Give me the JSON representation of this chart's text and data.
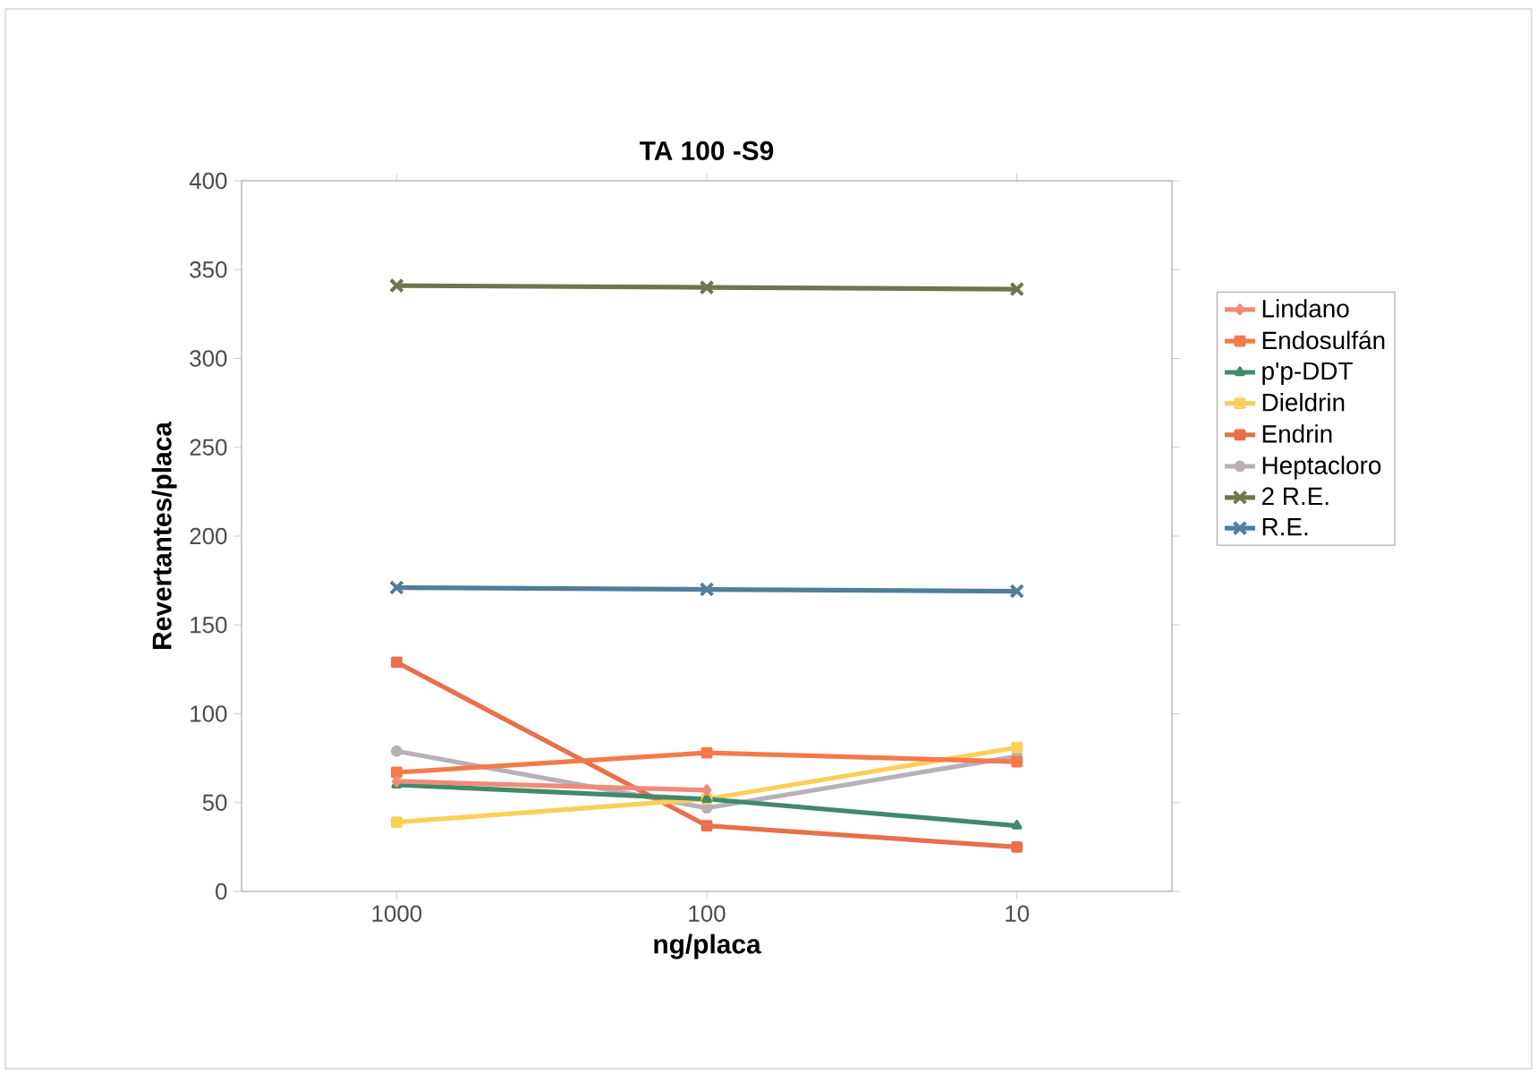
{
  "chart_data": {
    "type": "line",
    "title": "TA 100 -S9",
    "xlabel": "ng/placa",
    "ylabel": "Revertantes/placa",
    "categories": [
      "1000",
      "100",
      "10"
    ],
    "ylim": [
      0,
      400
    ],
    "yticks": [
      0,
      50,
      100,
      150,
      200,
      250,
      300,
      350,
      400
    ],
    "grid": false,
    "legend": "right",
    "series": [
      {
        "name": "Lindano",
        "color": "#f08a7a",
        "marker": "diamond",
        "values": [
          62,
          57,
          null
        ]
      },
      {
        "name": "Endosulfán",
        "color": "#f47a4a",
        "marker": "square",
        "values": [
          67,
          78,
          73
        ]
      },
      {
        "name": "p'p-DDT",
        "color": "#3f8a6a",
        "marker": "triangle",
        "values": [
          60,
          52,
          37
        ]
      },
      {
        "name": "Dieldrin",
        "color": "#fbcf5a",
        "marker": "square",
        "values": [
          39,
          52,
          81
        ]
      },
      {
        "name": "Endrin",
        "color": "#e8704a",
        "marker": "square",
        "values": [
          129,
          37,
          25
        ]
      },
      {
        "name": "Heptacloro",
        "color": "#b8b0b8",
        "marker": "circle",
        "values": [
          79,
          47,
          76
        ]
      },
      {
        "name": "2 R.E.",
        "color": "#6f7550",
        "marker": "cross",
        "values": [
          341,
          340,
          339
        ]
      },
      {
        "name": "R.E.",
        "color": "#4f7f99",
        "marker": "cross",
        "values": [
          171,
          170,
          169
        ]
      }
    ]
  }
}
